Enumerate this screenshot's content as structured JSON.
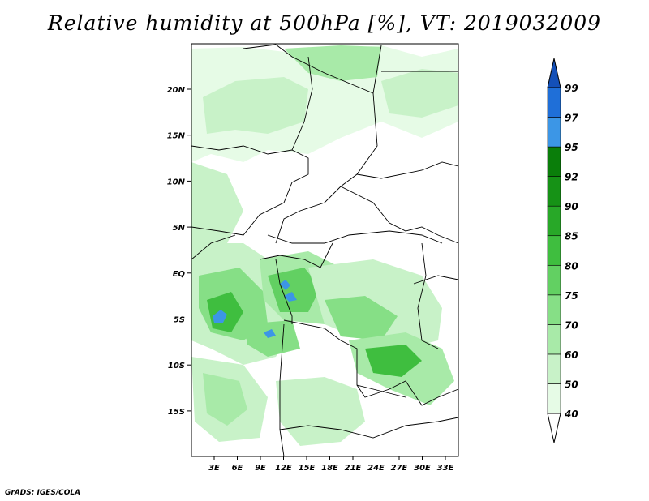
{
  "title": "Relative humidity at 500hPa [%], VT: 2019032009",
  "credit": "GrADS: IGES/COLA",
  "map": {
    "lon_labels": [
      "3E",
      "6E",
      "9E",
      "12E",
      "15E",
      "18E",
      "21E",
      "24E",
      "27E",
      "30E",
      "33E"
    ],
    "lat_labels": [
      "20N",
      "15N",
      "10N",
      "5N",
      "EQ",
      "5S",
      "10S",
      "15S"
    ],
    "land_color": "#ffffff",
    "border_color": "#000000"
  },
  "colorbar": {
    "levels": [
      "40",
      "50",
      "60",
      "70",
      "75",
      "80",
      "85",
      "90",
      "92",
      "95",
      "97",
      "99"
    ],
    "colors": [
      "#ffffff",
      "#e6fbe6",
      "#c8f2c8",
      "#a8eaa8",
      "#86df86",
      "#62d062",
      "#3fbe3f",
      "#28a828",
      "#169216",
      "#0a7e0a",
      "#3c96e6",
      "#1f6fd8",
      "#1450b8"
    ]
  },
  "humid_patches": [
    {
      "name": "sahel-band",
      "level": "60"
    },
    {
      "name": "gabon-congo",
      "level": "80"
    },
    {
      "name": "central-congo",
      "level": "75"
    },
    {
      "name": "south-zambia",
      "level": "70"
    },
    {
      "name": "east-lakes",
      "level": "75"
    },
    {
      "name": "atlantic-west",
      "level": "85"
    },
    {
      "name": "peak-patch",
      "level": "97"
    }
  ]
}
